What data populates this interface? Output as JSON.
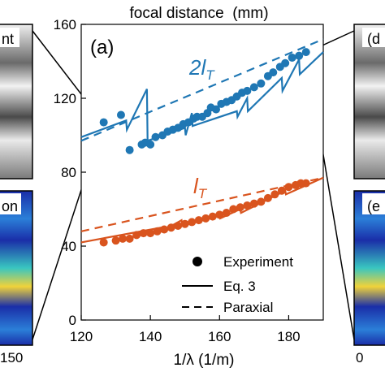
{
  "chart_data": {
    "type": "scatter",
    "title": "focal distance  (mm)",
    "xlabel": "1/λ (1/m)",
    "ylabel": "",
    "xlim": [
      120,
      190
    ],
    "ylim": [
      0,
      160
    ],
    "grid": false,
    "legend_position": "bottom-right",
    "panel_label": "(a)",
    "x_ticks": [
      "120",
      "140",
      "160",
      "180"
    ],
    "x_tick_values": [
      120,
      140,
      160,
      180
    ],
    "y_ticks": [
      "0",
      "40",
      "80",
      "120",
      "160"
    ],
    "y_tick_values": [
      0,
      40,
      80,
      120,
      160
    ],
    "colors": {
      "blue": "#1f77b4",
      "orange": "#d9541e",
      "black": "#000000"
    },
    "annotations": [
      {
        "text": "2l_T",
        "series": "2lT"
      },
      {
        "text": "l_T",
        "series": "lT"
      }
    ],
    "legend": [
      {
        "label": "Experiment",
        "style": "marker"
      },
      {
        "label": "Eq. 3",
        "style": "solid"
      },
      {
        "label": "Paraxial",
        "style": "dashed"
      }
    ],
    "series": [
      {
        "key": "2lT_exp",
        "group": "2lT",
        "kind": "experiment",
        "color": "#1f77b4",
        "points": [
          [
            126.5,
            107
          ],
          [
            131.5,
            111
          ],
          [
            134,
            92
          ],
          [
            137.5,
            95
          ],
          [
            138.5,
            96
          ],
          [
            140,
            95
          ],
          [
            141.5,
            99
          ],
          [
            143.5,
            100
          ],
          [
            145,
            102
          ],
          [
            146.5,
            103
          ],
          [
            148,
            104
          ],
          [
            149.5,
            106
          ],
          [
            151,
            107
          ],
          [
            152.5,
            109
          ],
          [
            153.5,
            110
          ],
          [
            155,
            110
          ],
          [
            156.5,
            112
          ],
          [
            157.5,
            115
          ],
          [
            159,
            114
          ],
          [
            160.5,
            117
          ],
          [
            162,
            118
          ],
          [
            163.5,
            119
          ],
          [
            165,
            121
          ],
          [
            166.5,
            123
          ],
          [
            168,
            124
          ],
          [
            170,
            126
          ],
          [
            172,
            128
          ],
          [
            174,
            132
          ],
          [
            175.5,
            134
          ],
          [
            177.5,
            137
          ],
          [
            179,
            139
          ],
          [
            181,
            142
          ],
          [
            183,
            143
          ],
          [
            185,
            145
          ]
        ]
      },
      {
        "key": "2lT_eq3",
        "group": "2lT",
        "kind": "eq3",
        "color": "#1f77b4",
        "points": [
          [
            120,
            99
          ],
          [
            133,
            108
          ],
          [
            133.2,
            103
          ],
          [
            139,
            125
          ],
          [
            139.2,
            97
          ],
          [
            150,
            104
          ],
          [
            150.2,
            100
          ],
          [
            152,
            112
          ],
          [
            152.2,
            105
          ],
          [
            165,
            113
          ],
          [
            165.2,
            110
          ],
          [
            168,
            120
          ],
          [
            168.2,
            113
          ],
          [
            178,
            131
          ],
          [
            178.2,
            124
          ],
          [
            183,
            141
          ],
          [
            183.2,
            133
          ],
          [
            190,
            145
          ]
        ]
      },
      {
        "key": "2lT_par",
        "group": "2lT",
        "kind": "paraxial",
        "color": "#1f77b4",
        "points": [
          [
            120,
            97
          ],
          [
            190,
            152
          ]
        ]
      },
      {
        "key": "lT_exp",
        "group": "lT",
        "kind": "experiment",
        "color": "#d9541e",
        "points": [
          [
            126.5,
            42
          ],
          [
            130,
            43
          ],
          [
            132,
            44
          ],
          [
            134,
            44
          ],
          [
            136,
            46
          ],
          [
            138,
            47
          ],
          [
            140,
            47
          ],
          [
            142,
            48
          ],
          [
            144,
            49
          ],
          [
            146,
            50
          ],
          [
            148,
            51
          ],
          [
            150,
            52
          ],
          [
            152,
            53
          ],
          [
            154,
            54
          ],
          [
            156,
            55
          ],
          [
            158,
            56
          ],
          [
            160,
            57
          ],
          [
            162,
            58
          ],
          [
            164,
            60
          ],
          [
            166,
            61
          ],
          [
            168,
            62
          ],
          [
            170,
            63
          ],
          [
            172,
            64
          ],
          [
            174,
            66
          ],
          [
            176,
            68
          ],
          [
            178,
            70
          ],
          [
            180,
            72
          ],
          [
            182,
            73
          ],
          [
            183.5,
            74
          ],
          [
            185,
            74
          ]
        ]
      },
      {
        "key": "lT_eq3",
        "group": "lT",
        "kind": "eq3",
        "color": "#d9541e",
        "points": [
          [
            120,
            42
          ],
          [
            143,
            50
          ],
          [
            143.2,
            48
          ],
          [
            149,
            54
          ],
          [
            149.2,
            51
          ],
          [
            160,
            57
          ],
          [
            160.2,
            55
          ],
          [
            166,
            60
          ],
          [
            166.2,
            58
          ],
          [
            179,
            70
          ],
          [
            179.2,
            68
          ],
          [
            190,
            77
          ]
        ]
      },
      {
        "key": "lT_par",
        "group": "lT",
        "kind": "paraxial",
        "color": "#d9541e",
        "points": [
          [
            120,
            48
          ],
          [
            190,
            77
          ]
        ]
      }
    ]
  },
  "left_panels": {
    "top_text": "nt",
    "bottom_text": "on",
    "tick_label": "150"
  },
  "right_panels": {
    "top_text": "(d",
    "bottom_text": "(e",
    "tick_label": "0"
  }
}
